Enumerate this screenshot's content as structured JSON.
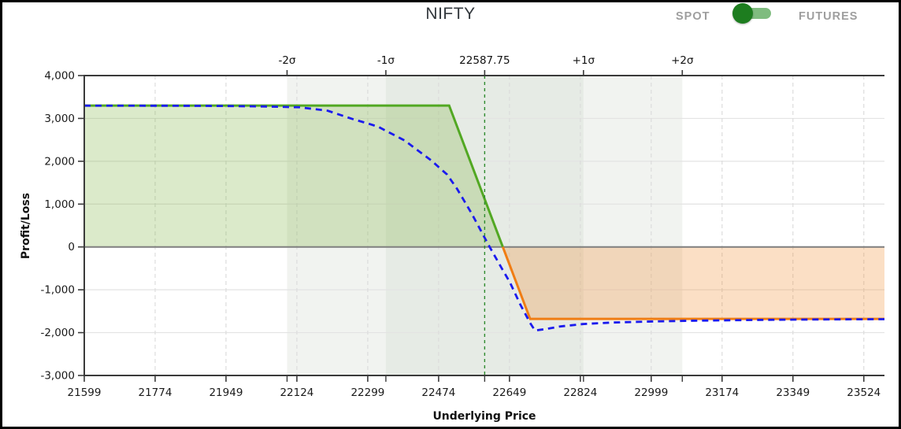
{
  "header": {
    "title": "NIFTY",
    "toggle": {
      "left_label": "SPOT",
      "right_label": "FUTURES",
      "selected": "SPOT",
      "knob_color": "#1d7d1f",
      "track_color": "#7fbc7f",
      "label_color": "#9e9e9e"
    }
  },
  "chart_data": {
    "type": "line",
    "xlabel": "Underlying Price",
    "ylabel": "Profit/Loss",
    "x_ticks": [
      21599,
      21774,
      21949,
      22124,
      22299,
      22474,
      22649,
      22824,
      22999,
      23174,
      23349,
      23524
    ],
    "y_ticks": [
      -3000,
      -2000,
      -1000,
      0,
      1000,
      2000,
      3000,
      4000
    ],
    "x_range": [
      21599,
      23575
    ],
    "y_range": [
      -3000,
      4000
    ],
    "current_price": 22587.75,
    "sigma_labels": [
      "-2σ",
      "-1σ",
      "22587.75",
      "+1σ",
      "+2σ"
    ],
    "sigma_prices": [
      22099.75,
      22343.75,
      22587.75,
      22831.75,
      23075.75
    ],
    "grid": true,
    "legend": "none",
    "series": [
      {
        "name": "expiry-payoff",
        "style": "solid",
        "pos_color": "#52a823",
        "neg_color": "#f07d14",
        "points": [
          [
            21599,
            3300
          ],
          [
            22500,
            3300
          ],
          [
            22700,
            -1680
          ],
          [
            23575,
            -1680
          ]
        ]
      },
      {
        "name": "t0-payoff",
        "style": "dashed",
        "color": "#1b1bee",
        "points": [
          [
            21599,
            3298
          ],
          [
            21800,
            3296
          ],
          [
            21950,
            3290
          ],
          [
            22050,
            3278
          ],
          [
            22130,
            3260
          ],
          [
            22200,
            3180
          ],
          [
            22260,
            2990
          ],
          [
            22300,
            2880
          ],
          [
            22325,
            2805
          ],
          [
            22390,
            2485
          ],
          [
            22455,
            2025
          ],
          [
            22495,
            1690
          ],
          [
            22520,
            1350
          ],
          [
            22555,
            790
          ],
          [
            22588,
            210
          ],
          [
            22600,
            0
          ],
          [
            22630,
            -500
          ],
          [
            22650,
            -825
          ],
          [
            22675,
            -1330
          ],
          [
            22700,
            -1775
          ],
          [
            22712,
            -1950
          ],
          [
            22740,
            -1915
          ],
          [
            22775,
            -1855
          ],
          [
            22830,
            -1800
          ],
          [
            22900,
            -1765
          ],
          [
            23000,
            -1740
          ],
          [
            23100,
            -1722
          ],
          [
            23200,
            -1710
          ],
          [
            23300,
            -1700
          ],
          [
            23420,
            -1692
          ],
          [
            23575,
            -1686
          ]
        ]
      }
    ],
    "colors": {
      "profit_fill": "rgba(124,179,66,0.28)",
      "loss_fill": "rgba(240,140,45,0.28)",
      "band_inner": "#e6ebe5",
      "band_outer": "#f1f3f0",
      "current_line": "#2e8b2e",
      "zero_line": "#7f7f7f",
      "grid_line": "#e3e3e3",
      "axis_line": "#3a3a3a",
      "tick_text": "#1a1a1a"
    }
  }
}
